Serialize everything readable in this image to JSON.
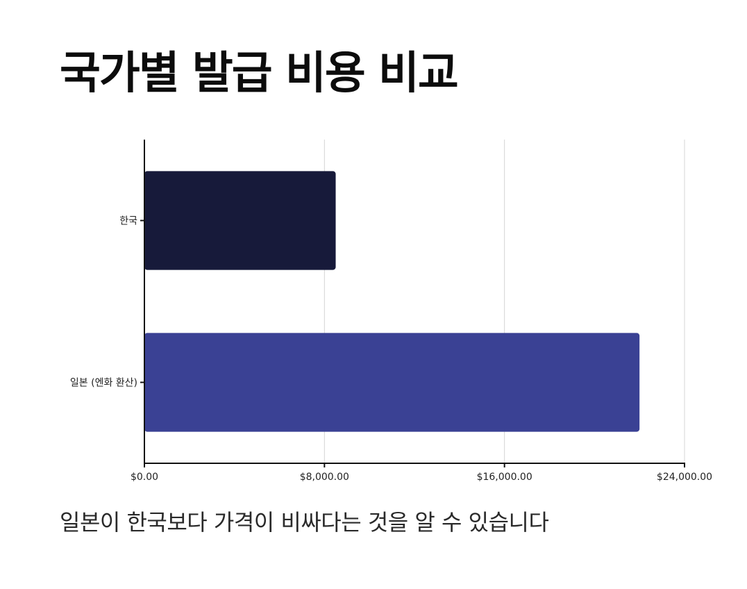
{
  "slide": {
    "title": "국가별 발급 비용 비교",
    "caption": "일본이 한국보다 가격이 비싸다는 것을 알 수 있습니다"
  },
  "chart_data": {
    "type": "bar",
    "orientation": "horizontal",
    "categories": [
      "한국",
      "일본 (엔화 환산)"
    ],
    "values": [
      8500,
      22000
    ],
    "colors": [
      "#171a3a",
      "#3a4194"
    ],
    "xlim": [
      0,
      24000
    ],
    "x_ticks": [
      0,
      8000,
      16000,
      24000
    ],
    "x_tick_labels": [
      "$0.00",
      "$8,000.00",
      "$16,000.00",
      "$24,000.00"
    ],
    "grid": true,
    "legend": false,
    "title": "",
    "xlabel": "",
    "ylabel": ""
  }
}
